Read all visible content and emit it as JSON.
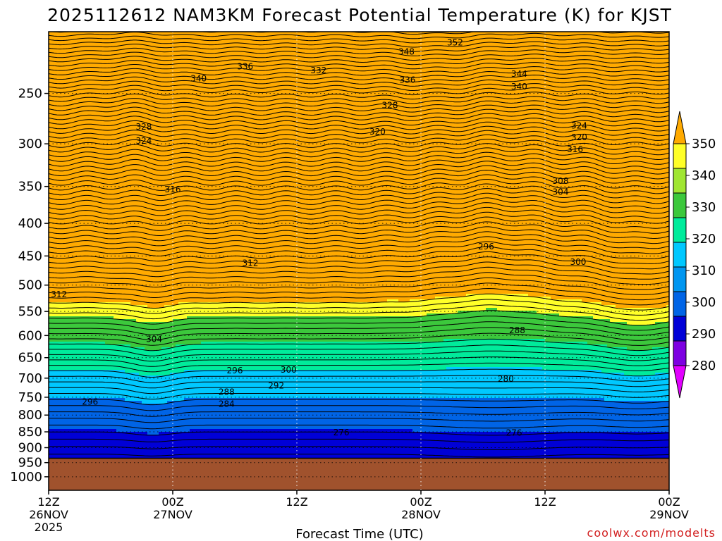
{
  "chart_data": {
    "type": "heatmap",
    "subtype": "time-height filled contour cross-section",
    "title": "2025112612 NAM3KM Forecast Potential Temperature (K) for KJST",
    "xlabel": "Forecast Time (UTC)",
    "ylabel": "",
    "x_unit": "forecast hour",
    "xlim": [
      0,
      60
    ],
    "y_unit": "hPa",
    "ylim": [
      1050,
      200
    ],
    "y_scale": "log-pressure",
    "y_ticks": [
      250,
      300,
      350,
      400,
      450,
      500,
      550,
      600,
      650,
      700,
      750,
      800,
      850,
      900,
      950,
      1000
    ],
    "x_ticks": [
      {
        "hour": 0,
        "lines": [
          "12Z",
          "26NOV",
          "2025"
        ]
      },
      {
        "hour": 12,
        "lines": [
          "00Z",
          "27NOV"
        ]
      },
      {
        "hour": 24,
        "lines": [
          "12Z"
        ]
      },
      {
        "hour": 36,
        "lines": [
          "00Z",
          "28NOV"
        ]
      },
      {
        "hour": 48,
        "lines": [
          "12Z"
        ]
      },
      {
        "hour": 60,
        "lines": [
          "00Z",
          "29NOV"
        ]
      }
    ],
    "grid": true,
    "ground_level_hPa": 935,
    "ground_color": "#a0522d",
    "colorbar": {
      "levels": [
        280,
        290,
        300,
        310,
        320,
        330,
        340,
        350
      ],
      "label_values": [
        "280",
        "290",
        "300",
        "310",
        "320",
        "330",
        "340",
        "350"
      ],
      "colors": [
        "#e100ff",
        "#7d00e1",
        "#0000d7",
        "#0064e6",
        "#0096f0",
        "#00c8ff",
        "#00eb9b",
        "#3cc83c",
        "#a0e632",
        "#ffff28",
        "#ffaa00"
      ],
      "extend": "both"
    },
    "fill_bands": [
      {
        "theta": 272,
        "color": "#e100ff"
      },
      {
        "theta": 285,
        "color": "#7d00e1"
      },
      {
        "theta": 295,
        "color": "#0000d7"
      },
      {
        "theta": 305,
        "color": "#0064e6"
      },
      {
        "theta": 315,
        "color": "#00c8ff"
      },
      {
        "theta": 325,
        "color": "#00eb9b"
      },
      {
        "theta": 335,
        "color": "#3cc83c"
      },
      {
        "theta": 345,
        "color": "#ffff28"
      },
      {
        "theta": 351,
        "color": "#ffaa00"
      }
    ],
    "contour_interval_K": 2,
    "contour_labels": [
      {
        "text": "352",
        "hour": 39.3,
        "p": 208
      },
      {
        "text": "348",
        "hour": 34.6,
        "p": 215
      },
      {
        "text": "344",
        "hour": 45.5,
        "p": 233
      },
      {
        "text": "340",
        "hour": 14.5,
        "p": 237
      },
      {
        "text": "340",
        "hour": 45.5,
        "p": 244
      },
      {
        "text": "336",
        "hour": 19.0,
        "p": 227
      },
      {
        "text": "336",
        "hour": 34.7,
        "p": 238
      },
      {
        "text": "332",
        "hour": 26.1,
        "p": 230
      },
      {
        "text": "328",
        "hour": 9.2,
        "p": 282
      },
      {
        "text": "328",
        "hour": 33.0,
        "p": 261
      },
      {
        "text": "324",
        "hour": 9.2,
        "p": 297
      },
      {
        "text": "324",
        "hour": 51.3,
        "p": 281
      },
      {
        "text": "320",
        "hour": 31.8,
        "p": 287
      },
      {
        "text": "320",
        "hour": 51.3,
        "p": 293
      },
      {
        "text": "316",
        "hour": 12.0,
        "p": 354
      },
      {
        "text": "316",
        "hour": 50.9,
        "p": 306
      },
      {
        "text": "312",
        "hour": 1.0,
        "p": 517
      },
      {
        "text": "312",
        "hour": 19.5,
        "p": 462
      },
      {
        "text": "308",
        "hour": 49.5,
        "p": 343
      },
      {
        "text": "304",
        "hour": 10.2,
        "p": 608
      },
      {
        "text": "304",
        "hour": 49.5,
        "p": 357
      },
      {
        "text": "300",
        "hour": 23.2,
        "p": 679
      },
      {
        "text": "300",
        "hour": 51.2,
        "p": 460
      },
      {
        "text": "296",
        "hour": 4.0,
        "p": 763
      },
      {
        "text": "296",
        "hour": 18.0,
        "p": 681
      },
      {
        "text": "296",
        "hour": 42.3,
        "p": 435
      },
      {
        "text": "292",
        "hour": 22.0,
        "p": 719
      },
      {
        "text": "288",
        "hour": 17.2,
        "p": 736
      },
      {
        "text": "288",
        "hour": 45.3,
        "p": 589
      },
      {
        "text": "284",
        "hour": 17.2,
        "p": 769
      },
      {
        "text": "280",
        "hour": 44.2,
        "p": 702
      },
      {
        "text": "276",
        "hour": 28.3,
        "p": 852
      },
      {
        "text": "276",
        "hour": 45.0,
        "p": 853
      }
    ]
  },
  "watermark": "coolwx.com/modelts"
}
